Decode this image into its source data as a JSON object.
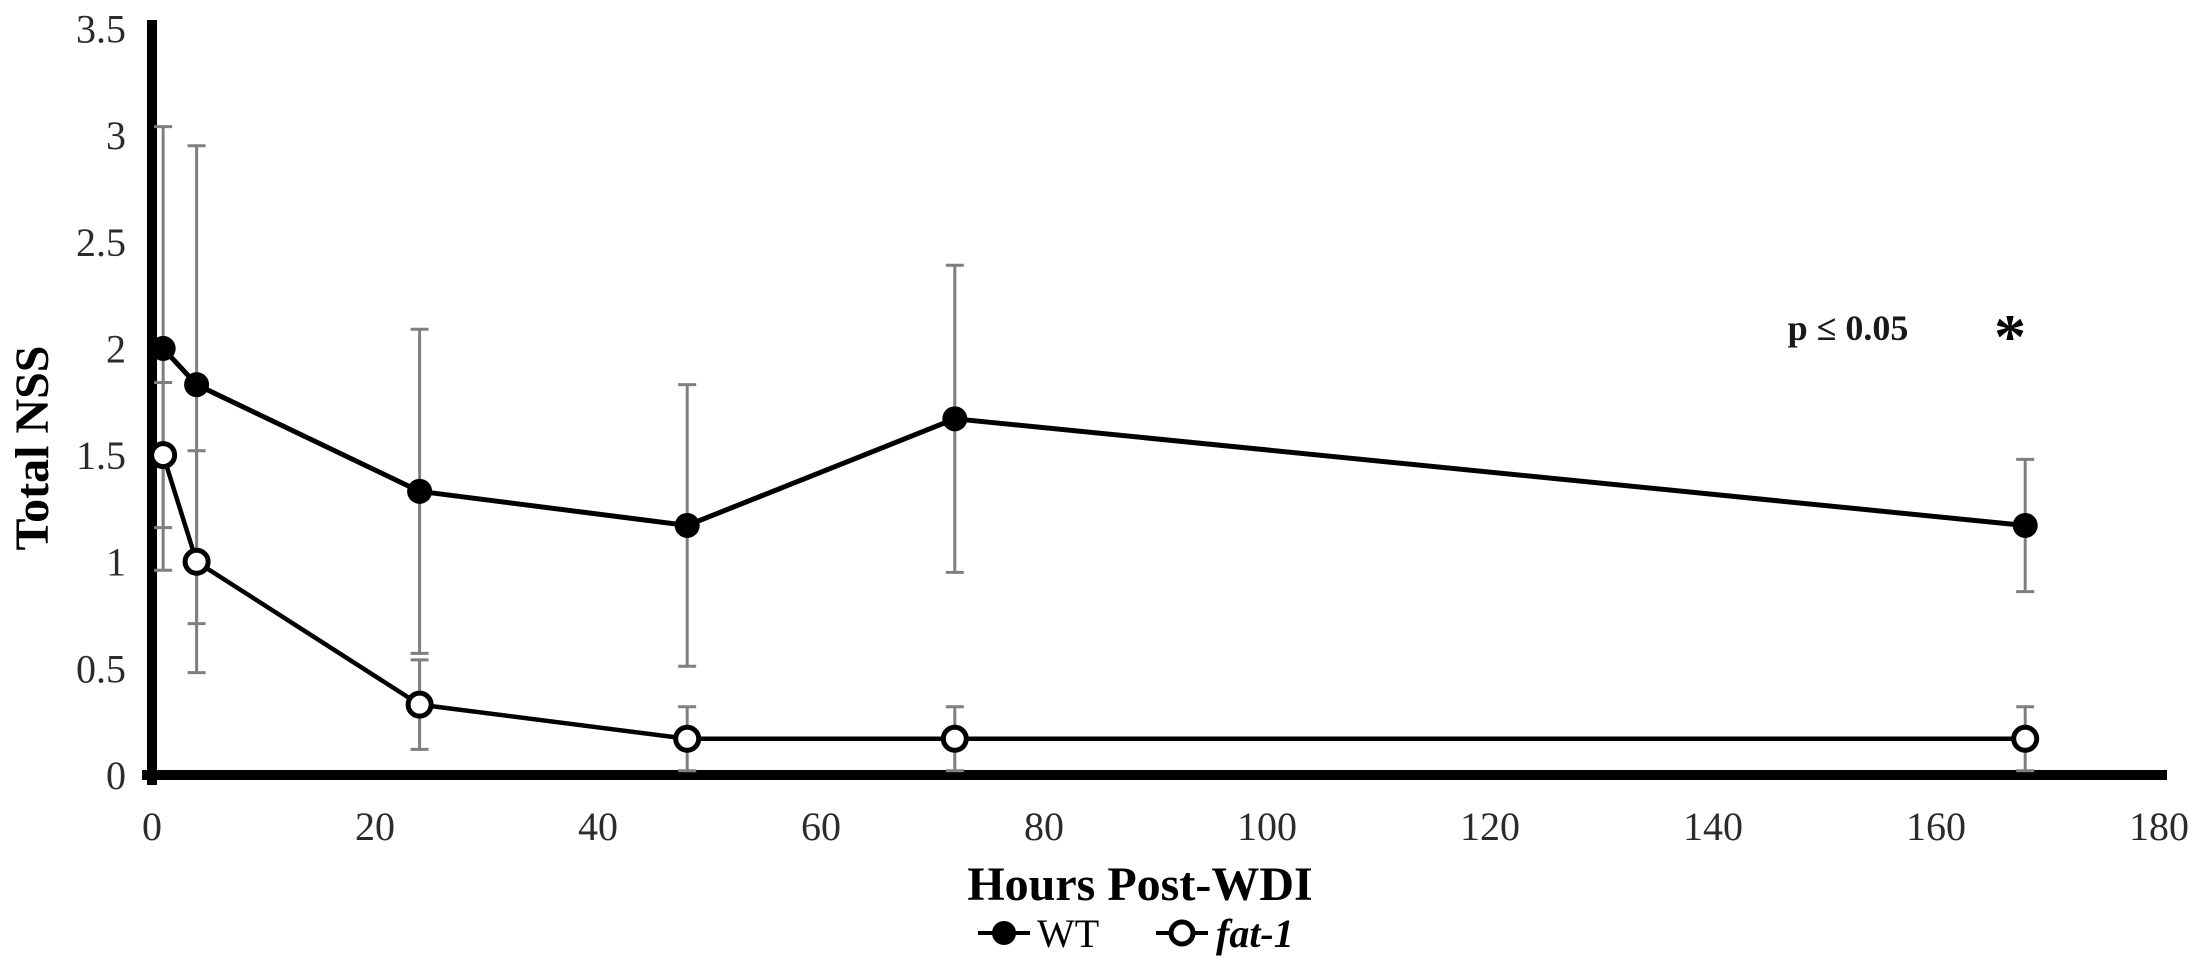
{
  "chart_data": {
    "type": "line",
    "title": "",
    "xlabel": "Hours Post-WDI",
    "ylabel": "Total NSS",
    "x": [
      1,
      4,
      24,
      48,
      72,
      168
    ],
    "xlim": [
      0,
      180
    ],
    "ylim": [
      0,
      3.5
    ],
    "xticks": [
      0,
      20,
      40,
      60,
      80,
      100,
      120,
      140,
      160,
      180
    ],
    "yticks": [
      0,
      0.5,
      1,
      1.5,
      2,
      2.5,
      3,
      3.5
    ],
    "grid": false,
    "legend_position": "bottom-center",
    "error_bar_color": "#7f7f7f",
    "line_color": "#000000",
    "series": [
      {
        "name": "WT",
        "marker": "filled-circle",
        "color": "#000000",
        "values": [
          2.0,
          1.83,
          1.33,
          1.17,
          1.67,
          1.17
        ],
        "errors": [
          1.04,
          1.12,
          0.76,
          0.66,
          0.72,
          0.31
        ]
      },
      {
        "name": "fat-1",
        "marker": "open-circle",
        "color": "#000000",
        "values": [
          1.5,
          1.0,
          0.33,
          0.17,
          0.17,
          0.17
        ],
        "errors": [
          0.34,
          0.52,
          0.21,
          0.15,
          0.15,
          0.15
        ]
      }
    ],
    "annotation": {
      "text": "p ≤ 0.05",
      "symbol": "*"
    }
  }
}
